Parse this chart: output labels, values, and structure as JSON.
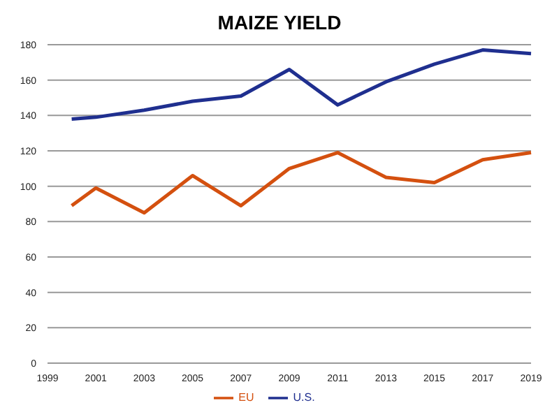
{
  "chart_data": {
    "type": "line",
    "title": "MAIZE YIELD",
    "categories": [
      "1999",
      null,
      "2001",
      null,
      "2003",
      null,
      "2005",
      null,
      "2007",
      null,
      "2009",
      null,
      "2011",
      null,
      "2013",
      null,
      "2015",
      null,
      "2017",
      null,
      "2019"
    ],
    "series": [
      {
        "name": "U.S.",
        "color": "#1f2f8f",
        "values": [
          null,
          138,
          139,
          null,
          143,
          null,
          148,
          null,
          151,
          null,
          166,
          null,
          146,
          null,
          159,
          null,
          169,
          null,
          177,
          null,
          175
        ]
      },
      {
        "name": "EU",
        "color": "#d4500f",
        "values": [
          null,
          89,
          99,
          null,
          85,
          null,
          106,
          null,
          89,
          null,
          110,
          null,
          119,
          null,
          105,
          null,
          102,
          null,
          115,
          null,
          119
        ]
      }
    ],
    "ylim": [
      0,
      180
    ],
    "yticks": [
      0,
      20,
      40,
      60,
      80,
      100,
      120,
      140,
      160,
      180
    ],
    "grid": "y",
    "legend": "bottom",
    "marker": "none"
  }
}
